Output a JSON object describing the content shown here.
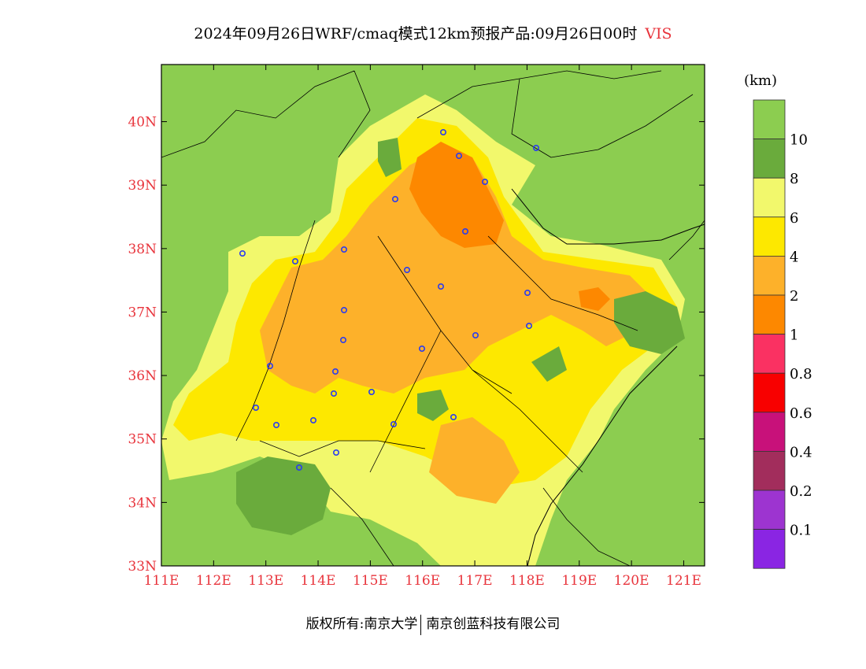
{
  "header": {
    "title": "2024年09月26日WRF/cmaq模式12km预报产品:09月26日00时",
    "variable": "VIS"
  },
  "axes": {
    "lat_labels": [
      "40N",
      "39N",
      "38N",
      "37N",
      "36N",
      "35N",
      "34N",
      "33N"
    ],
    "lon_labels": [
      "111E",
      "112E",
      "113E",
      "114E",
      "115E",
      "116E",
      "117E",
      "118E",
      "119E",
      "120E",
      "121E"
    ],
    "lat_range": [
      33,
      40.9
    ],
    "lon_range": [
      111,
      121.4
    ]
  },
  "legend": {
    "unit": "(km)",
    "levels": [
      {
        "label": "",
        "color": "#8ccd50"
      },
      {
        "label": "10",
        "color": "#6aab3c"
      },
      {
        "label": "8",
        "color": "#f2f86c"
      },
      {
        "label": "6",
        "color": "#fde800"
      },
      {
        "label": "4",
        "color": "#fdb12a"
      },
      {
        "label": "2",
        "color": "#fd8800"
      },
      {
        "label": "1",
        "color": "#fa3162"
      },
      {
        "label": "0.8",
        "color": "#f80000"
      },
      {
        "label": "0.6",
        "color": "#c8117a"
      },
      {
        "label": "0.4",
        "color": "#a22d5c"
      },
      {
        "label": "0.2",
        "color": "#9d34d0"
      },
      {
        "label": "0.1",
        "color": "#8a25e3"
      }
    ]
  },
  "footer": {
    "left": "版权所有:南京大学",
    "right": "南京创蓝科技有限公司"
  },
  "colors": {
    "axis_label": "#e8343c",
    "station_marker": "#2a3cf0"
  }
}
